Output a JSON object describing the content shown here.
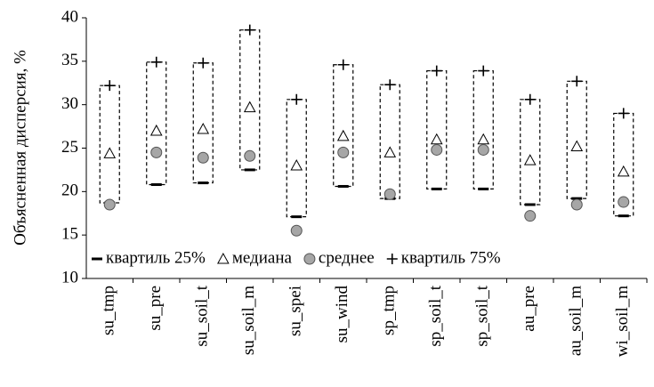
{
  "chart_data": {
    "type": "box",
    "ylabel": "Объясненная дисперсия, %",
    "categories": [
      "su_tmp",
      "su_pre",
      "su_soil_t",
      "su_soil_m",
      "su_spei",
      "su_wind",
      "sp_tmp",
      "sp_soil_t",
      "sp_soil_t",
      "au_pre",
      "au_soil_m",
      "wi_soil_m"
    ],
    "series": [
      {
        "name": "квартиль 25%",
        "marker": "dash",
        "color": "#000000",
        "values": [
          18.7,
          20.8,
          21.0,
          22.5,
          17.1,
          20.6,
          19.2,
          20.3,
          20.3,
          18.5,
          19.2,
          17.2
        ]
      },
      {
        "name": "медиана",
        "marker": "triangle",
        "color": "#ffffff",
        "values": [
          24.4,
          27.0,
          27.2,
          29.7,
          23.0,
          26.4,
          24.5,
          26.0,
          26.0,
          23.6,
          25.2,
          22.3
        ]
      },
      {
        "name": "среднее",
        "marker": "circle",
        "color": "#a6a6a6",
        "values": [
          18.5,
          24.5,
          23.9,
          24.1,
          15.5,
          24.5,
          19.7,
          24.8,
          24.8,
          17.2,
          18.5,
          18.8
        ]
      },
      {
        "name": "квартиль 75%",
        "marker": "plus",
        "color": "#000000",
        "values": [
          32.2,
          34.9,
          34.8,
          38.6,
          30.6,
          34.6,
          32.3,
          33.9,
          33.9,
          30.6,
          32.7,
          29.0
        ]
      }
    ],
    "ylim": [
      10,
      40
    ],
    "yticks": [
      10,
      15,
      20,
      25,
      30,
      35,
      40
    ],
    "legend": "bottom"
  }
}
